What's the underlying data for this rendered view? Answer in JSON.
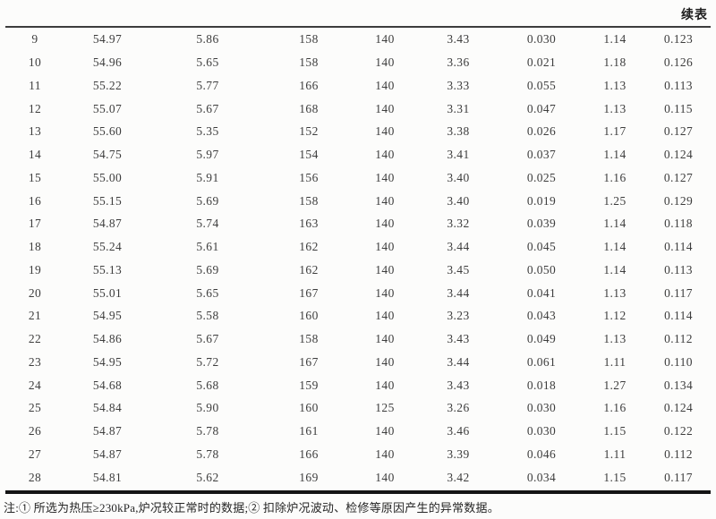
{
  "page": {
    "continued_label": "续表",
    "note": "注:① 所选为热压≥230kPa,炉况较正常时的数据;② 扣除炉况波动、检修等原因产生的异常数据。"
  },
  "table": {
    "type": "table",
    "header_visible": false,
    "rows": [
      [
        "9",
        "54.97",
        "5.86",
        "158",
        "140",
        "3.43",
        "0.030",
        "1.14",
        "0.123"
      ],
      [
        "10",
        "54.96",
        "5.65",
        "158",
        "140",
        "3.36",
        "0.021",
        "1.18",
        "0.126"
      ],
      [
        "11",
        "55.22",
        "5.77",
        "166",
        "140",
        "3.33",
        "0.055",
        "1.13",
        "0.113"
      ],
      [
        "12",
        "55.07",
        "5.67",
        "168",
        "140",
        "3.31",
        "0.047",
        "1.13",
        "0.115"
      ],
      [
        "13",
        "55.60",
        "5.35",
        "152",
        "140",
        "3.38",
        "0.026",
        "1.17",
        "0.127"
      ],
      [
        "14",
        "54.75",
        "5.97",
        "154",
        "140",
        "3.41",
        "0.037",
        "1.14",
        "0.124"
      ],
      [
        "15",
        "55.00",
        "5.91",
        "156",
        "140",
        "3.40",
        "0.025",
        "1.16",
        "0.127"
      ],
      [
        "16",
        "55.15",
        "5.69",
        "158",
        "140",
        "3.40",
        "0.019",
        "1.25",
        "0.129"
      ],
      [
        "17",
        "54.87",
        "5.74",
        "163",
        "140",
        "3.32",
        "0.039",
        "1.14",
        "0.118"
      ],
      [
        "18",
        "55.24",
        "5.61",
        "162",
        "140",
        "3.44",
        "0.045",
        "1.14",
        "0.114"
      ],
      [
        "19",
        "55.13",
        "5.69",
        "162",
        "140",
        "3.45",
        "0.050",
        "1.14",
        "0.113"
      ],
      [
        "20",
        "55.01",
        "5.65",
        "167",
        "140",
        "3.44",
        "0.041",
        "1.13",
        "0.117"
      ],
      [
        "21",
        "54.95",
        "5.58",
        "160",
        "140",
        "3.23",
        "0.043",
        "1.12",
        "0.114"
      ],
      [
        "22",
        "54.86",
        "5.67",
        "158",
        "140",
        "3.43",
        "0.049",
        "1.13",
        "0.112"
      ],
      [
        "23",
        "54.95",
        "5.72",
        "167",
        "140",
        "3.44",
        "0.061",
        "1.11",
        "0.110"
      ],
      [
        "24",
        "54.68",
        "5.68",
        "159",
        "140",
        "3.43",
        "0.018",
        "1.27",
        "0.134"
      ],
      [
        "25",
        "54.84",
        "5.90",
        "160",
        "125",
        "3.26",
        "0.030",
        "1.16",
        "0.124"
      ],
      [
        "26",
        "54.87",
        "5.78",
        "161",
        "140",
        "3.46",
        "0.030",
        "1.15",
        "0.122"
      ],
      [
        "27",
        "54.87",
        "5.78",
        "166",
        "140",
        "3.39",
        "0.046",
        "1.11",
        "0.112"
      ],
      [
        "28",
        "54.81",
        "5.62",
        "169",
        "140",
        "3.42",
        "0.034",
        "1.15",
        "0.117"
      ]
    ]
  }
}
